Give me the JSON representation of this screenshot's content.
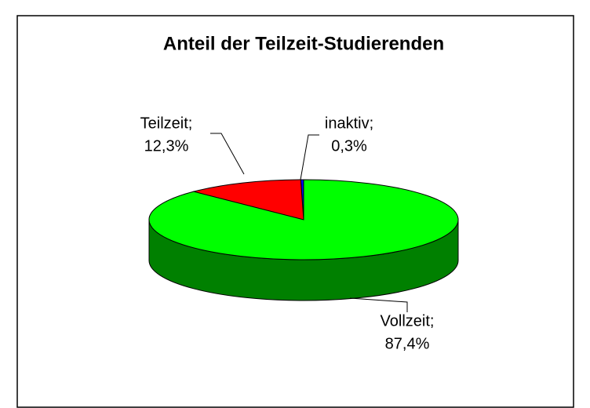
{
  "chart_data": {
    "type": "pie",
    "title": "Anteil der Teilzeit-Studierenden",
    "categories": [
      "inaktiv;",
      "Teilzeit;",
      "Vollzeit;"
    ],
    "values": [
      0.3,
      12.3,
      87.4
    ],
    "value_labels": [
      "0,3%",
      "12,3%",
      "87,4%"
    ],
    "colors": [
      "#0000ff",
      "#ff0000",
      "#00ff00"
    ],
    "three_d": true
  }
}
